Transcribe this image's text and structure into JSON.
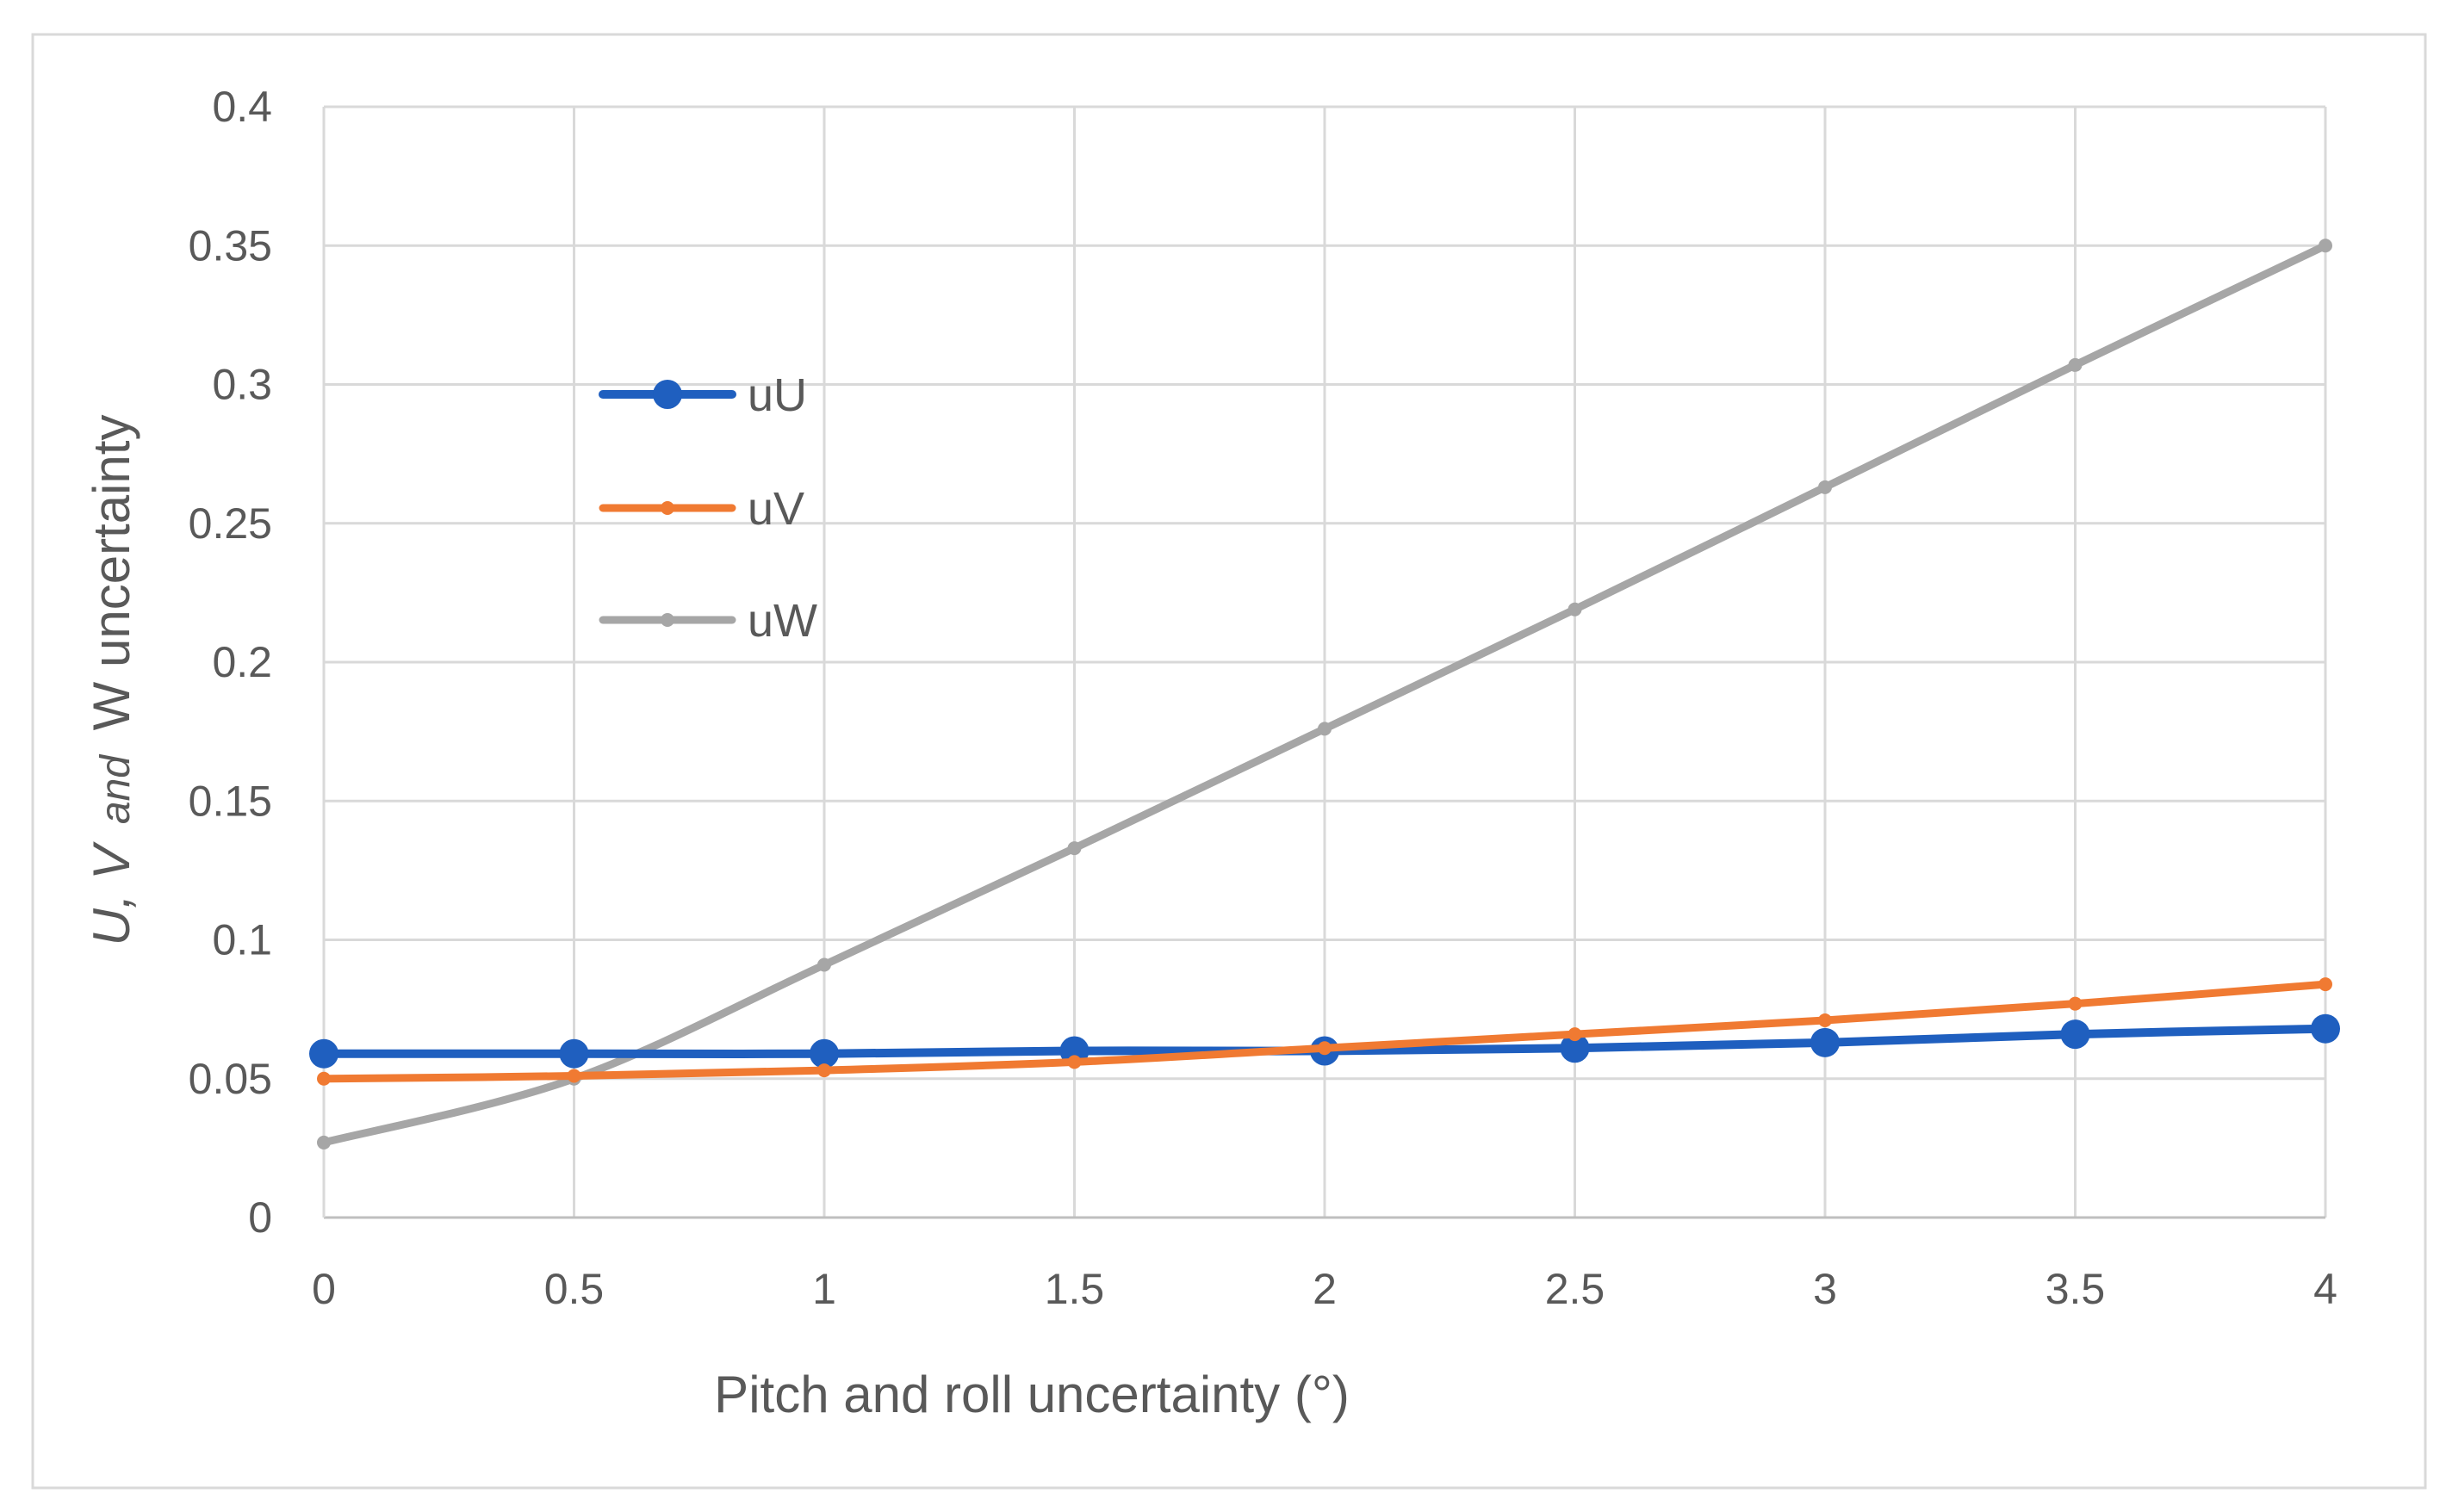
{
  "chart_data": {
    "type": "line",
    "title": "",
    "xlabel": "Pitch and roll uncertainty (°)",
    "ylabel_parts": {
      "prefix": "U, V",
      "middle": "and",
      "suffix": "W  uncertainty"
    },
    "x": [
      0,
      0.5,
      1,
      1.5,
      2,
      2.5,
      3,
      3.5,
      4
    ],
    "xlim": [
      0,
      4
    ],
    "ylim": [
      0,
      0.4
    ],
    "x_tick_labels": [
      "0",
      "0.5",
      "1",
      "1.5",
      "2",
      "2.5",
      "3",
      "3.5",
      "4"
    ],
    "y_tick_values": [
      0,
      0.05,
      0.1,
      0.15,
      0.2,
      0.25,
      0.3,
      0.35,
      0.4
    ],
    "y_tick_labels": [
      "0",
      "0.05",
      "0.1",
      "0.15",
      "0.2",
      "0.25",
      "0.3",
      "0.35",
      "0.4"
    ],
    "grid": true,
    "legend_position": "upper-left inside plot",
    "series": [
      {
        "name": "uU",
        "color": "#1f5fbf",
        "marker": "large-circle",
        "values": [
          0.059,
          0.059,
          0.059,
          0.06,
          0.06,
          0.061,
          0.063,
          0.066,
          0.068
        ]
      },
      {
        "name": "uV",
        "color": "#f07a32",
        "marker": "small-circle",
        "values": [
          0.05,
          0.051,
          0.053,
          0.056,
          0.061,
          0.066,
          0.071,
          0.077,
          0.084
        ]
      },
      {
        "name": "uW",
        "color": "#a6a6a6",
        "marker": "small-circle",
        "values": [
          0.027,
          0.05,
          0.091,
          0.133,
          0.176,
          0.219,
          0.263,
          0.307,
          0.35
        ]
      }
    ]
  }
}
